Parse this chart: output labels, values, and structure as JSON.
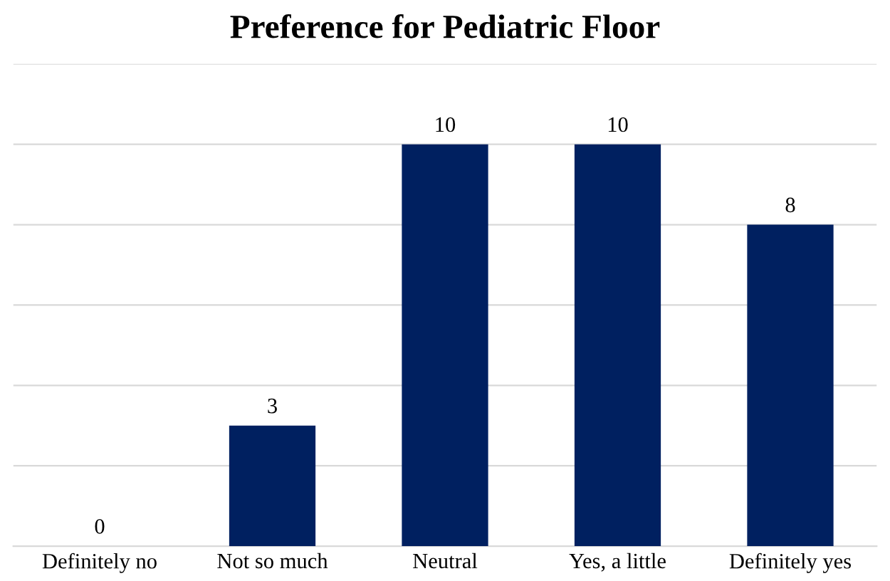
{
  "chart_data": {
    "type": "bar",
    "title": "Preference for Pediatric Floor",
    "categories": [
      "Definitely no",
      "Not so much",
      "Neutral",
      "Yes, a little",
      "Definitely yes"
    ],
    "values": [
      0,
      3,
      10,
      10,
      8
    ],
    "color": "#002060",
    "ylim": [
      0,
      12
    ],
    "yticks": [
      {
        "value": 0,
        "label": null
      },
      {
        "value": 2,
        "label": null
      },
      {
        "value": 4,
        "label": null
      },
      {
        "value": 6,
        "label": null
      },
      {
        "value": 8,
        "label": null
      },
      {
        "value": 10,
        "label": null
      },
      {
        "value": 12,
        "label": null
      }
    ],
    "grid": "y",
    "tick_labels": "x",
    "data_labels": true
  }
}
